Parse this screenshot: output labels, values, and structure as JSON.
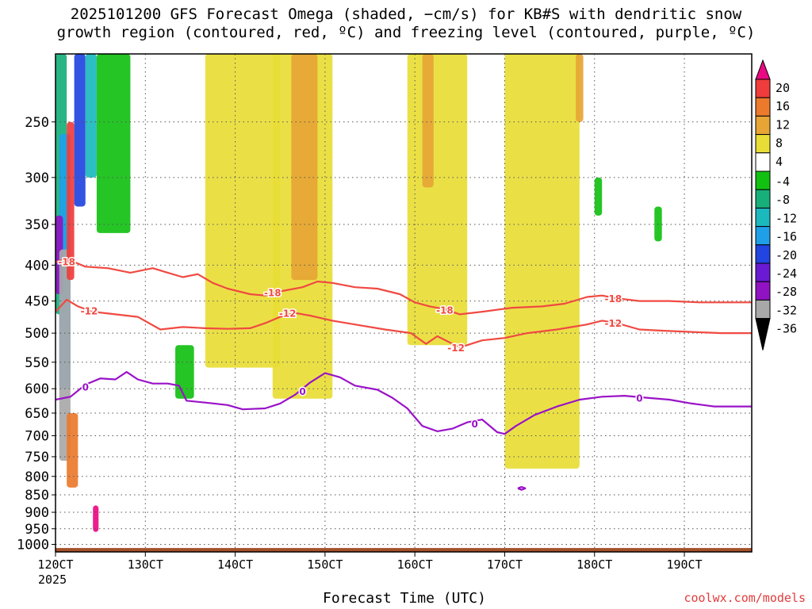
{
  "title_line1": "2025101200 GFS Forecast Omega (shaded, −cm/s) for KB#S with dendritic snow",
  "title_line2": "growth region (contoured, red, ºC) and freezing level (contoured, purple, ºC)",
  "xlabel": "Forecast Time (UTC)",
  "year_label": "2025",
  "credit": "coolwx.com/models",
  "colors": {
    "dgz_contour": "#f04a42",
    "freezing_contour": "#9a12c8",
    "terrain": "#a4522a",
    "grid": "#555555"
  },
  "chart_data": {
    "type": "heatmap",
    "title": "2025101200 GFS Forecast Omega (shaded, −cm/s) for KB#S with dendritic snow growth region (contoured, red, ºC) and freezing level (contoured, purple, ºC)",
    "xlabel": "Forecast Time (UTC)",
    "ylabel": "",
    "x_ticks": [
      "120CT",
      "130CT",
      "140CT",
      "150CT",
      "160CT",
      "170CT",
      "180CT",
      "190CT"
    ],
    "x_tick_hours": [
      0,
      24,
      48,
      72,
      96,
      120,
      144,
      168
    ],
    "x_range_hours": [
      0,
      186
    ],
    "y_ticks": [
      250,
      300,
      350,
      400,
      450,
      500,
      550,
      600,
      650,
      700,
      750,
      800,
      850,
      900,
      950,
      1000
    ],
    "y_range_hpa": [
      200,
      1025
    ],
    "y_scale": "log-pressure",
    "grid": true,
    "colorbar": {
      "labels": [
        "20",
        "16",
        "12",
        "8",
        "4",
        "-4",
        "-8",
        "-12",
        "-16",
        "-20",
        "-24",
        "-28",
        "-32",
        "-36"
      ],
      "bins": [
        {
          "from": 20,
          "to": 24,
          "color": "#ea0a82"
        },
        {
          "from": 16,
          "to": 20,
          "color": "#f03c3c"
        },
        {
          "from": 12,
          "to": 16,
          "color": "#ec7a2c"
        },
        {
          "from": 8,
          "to": 12,
          "color": "#e6a535"
        },
        {
          "from": 4,
          "to": 8,
          "color": "#e8dd36"
        },
        {
          "from": -4,
          "to": 4,
          "color": "#ffffff"
        },
        {
          "from": -8,
          "to": -4,
          "color": "#12c012"
        },
        {
          "from": -12,
          "to": -8,
          "color": "#18b07a"
        },
        {
          "from": -16,
          "to": -12,
          "color": "#1bb8be"
        },
        {
          "from": -20,
          "to": -16,
          "color": "#1f9fe8"
        },
        {
          "from": -24,
          "to": -20,
          "color": "#2244e0"
        },
        {
          "from": -28,
          "to": -24,
          "color": "#6a1ad2"
        },
        {
          "from": -32,
          "to": -28,
          "color": "#9012c2"
        },
        {
          "from": -36,
          "to": -32,
          "color": "#a8a8a8"
        }
      ]
    },
    "contours": [
      {
        "name": "-18",
        "kind": "dgz",
        "label": "-18",
        "points": [
          [
            0,
            396
          ],
          [
            3,
            392
          ],
          [
            8,
            402
          ],
          [
            14,
            404
          ],
          [
            20,
            410
          ],
          [
            26,
            404
          ],
          [
            30,
            410
          ],
          [
            34,
            416
          ],
          [
            38,
            412
          ],
          [
            42,
            424
          ],
          [
            46,
            432
          ],
          [
            52,
            440
          ],
          [
            56,
            442
          ],
          [
            60,
            436
          ],
          [
            66,
            430
          ],
          [
            70,
            422
          ],
          [
            74,
            424
          ],
          [
            80,
            430
          ],
          [
            86,
            432
          ],
          [
            92,
            440
          ],
          [
            96,
            452
          ],
          [
            100,
            458
          ],
          [
            104,
            462
          ],
          [
            108,
            470
          ],
          [
            114,
            466
          ],
          [
            122,
            460
          ],
          [
            130,
            458
          ],
          [
            136,
            454
          ],
          [
            142,
            444
          ],
          [
            146,
            442
          ],
          [
            150,
            446
          ],
          [
            156,
            450
          ],
          [
            164,
            450
          ],
          [
            172,
            452
          ],
          [
            180,
            452
          ],
          [
            186,
            452
          ]
        ],
        "labels_at": [
          [
            3,
            395
          ],
          [
            58,
            437
          ],
          [
            104,
            463
          ],
          [
            149,
            446
          ]
        ]
      },
      {
        "name": "-12",
        "kind": "dgz",
        "label": "-12",
        "points": [
          [
            0,
            466
          ],
          [
            3,
            448
          ],
          [
            6,
            458
          ],
          [
            10,
            466
          ],
          [
            16,
            470
          ],
          [
            22,
            474
          ],
          [
            28,
            494
          ],
          [
            34,
            490
          ],
          [
            40,
            492
          ],
          [
            46,
            493
          ],
          [
            52,
            492
          ],
          [
            56,
            484
          ],
          [
            60,
            474
          ],
          [
            64,
            468
          ],
          [
            68,
            472
          ],
          [
            74,
            480
          ],
          [
            80,
            486
          ],
          [
            88,
            494
          ],
          [
            95,
            500
          ],
          [
            99,
            518
          ],
          [
            102,
            505
          ],
          [
            108,
            524
          ],
          [
            114,
            512
          ],
          [
            120,
            508
          ],
          [
            126,
            500
          ],
          [
            134,
            494
          ],
          [
            142,
            486
          ],
          [
            146,
            480
          ],
          [
            150,
            484
          ],
          [
            156,
            494
          ],
          [
            162,
            496
          ],
          [
            170,
            498
          ],
          [
            178,
            500
          ],
          [
            186,
            500
          ]
        ],
        "labels_at": [
          [
            9,
            464
          ],
          [
            62,
            468
          ],
          [
            107,
            524
          ],
          [
            149,
            483
          ]
        ]
      },
      {
        "name": "0",
        "kind": "freezing",
        "label": "0",
        "points": [
          [
            0,
            622
          ],
          [
            4,
            616
          ],
          [
            8,
            592
          ],
          [
            12,
            580
          ],
          [
            16,
            582
          ],
          [
            19,
            568
          ],
          [
            22,
            582
          ],
          [
            26,
            590
          ],
          [
            30,
            590
          ],
          [
            33,
            594
          ],
          [
            35,
            624
          ],
          [
            40,
            628
          ],
          [
            46,
            633
          ],
          [
            50,
            642
          ],
          [
            56,
            640
          ],
          [
            60,
            630
          ],
          [
            64,
            612
          ],
          [
            68,
            588
          ],
          [
            72,
            570
          ],
          [
            76,
            578
          ],
          [
            80,
            594
          ],
          [
            86,
            602
          ],
          [
            90,
            618
          ],
          [
            94,
            640
          ],
          [
            98,
            678
          ],
          [
            102,
            690
          ],
          [
            106,
            684
          ],
          [
            110,
            670
          ],
          [
            114,
            664
          ],
          [
            118,
            692
          ],
          [
            120,
            696
          ],
          [
            123,
            678
          ],
          [
            128,
            654
          ],
          [
            134,
            636
          ],
          [
            140,
            622
          ],
          [
            146,
            616
          ],
          [
            152,
            614
          ],
          [
            158,
            618
          ],
          [
            164,
            622
          ],
          [
            170,
            630
          ],
          [
            176,
            636
          ],
          [
            186,
            636
          ]
        ],
        "labels_at": [
          [
            8,
            596
          ],
          [
            66,
            604
          ],
          [
            112,
            672
          ],
          [
            156,
            618
          ]
        ]
      },
      {
        "name": "0-closed",
        "kind": "freezing",
        "label": "",
        "points": [
          [
            123.5,
            832
          ],
          [
            124.5,
            828
          ],
          [
            125.5,
            832
          ],
          [
            124.5,
            836
          ],
          [
            123.5,
            832
          ]
        ],
        "labels_at": []
      }
    ],
    "omega_regions": [
      {
        "value": -10,
        "x": [
          0,
          3
        ],
        "p": [
          200,
          470
        ]
      },
      {
        "value": -18,
        "x": [
          1,
          4
        ],
        "p": [
          260,
          600
        ]
      },
      {
        "value": -30,
        "x": [
          0,
          2
        ],
        "p": [
          340,
          440
        ]
      },
      {
        "value": -36,
        "x": [
          1,
          4
        ],
        "p": [
          380,
          760
        ]
      },
      {
        "value": -22,
        "x": [
          5,
          8
        ],
        "p": [
          200,
          330
        ]
      },
      {
        "value": -14,
        "x": [
          8,
          11
        ],
        "p": [
          200,
          300
        ]
      },
      {
        "value": -6,
        "x": [
          11,
          20
        ],
        "p": [
          200,
          360
        ]
      },
      {
        "value": -6,
        "x": [
          32,
          37
        ],
        "p": [
          520,
          620
        ]
      },
      {
        "value": 18,
        "x": [
          3,
          5
        ],
        "p": [
          250,
          420
        ]
      },
      {
        "value": 14,
        "x": [
          3,
          6
        ],
        "p": [
          650,
          830
        ]
      },
      {
        "value": 22,
        "x": [
          10,
          11.5
        ],
        "p": [
          880,
          960
        ]
      },
      {
        "value": 6,
        "x": [
          40,
          60
        ],
        "p": [
          200,
          560
        ]
      },
      {
        "value": 6,
        "x": [
          58,
          74
        ],
        "p": [
          200,
          620
        ]
      },
      {
        "value": 10,
        "x": [
          63,
          70
        ],
        "p": [
          200,
          420
        ]
      },
      {
        "value": 6,
        "x": [
          94,
          110
        ],
        "p": [
          200,
          520
        ]
      },
      {
        "value": 10,
        "x": [
          98,
          101
        ],
        "p": [
          200,
          310
        ]
      },
      {
        "value": 6,
        "x": [
          120,
          140
        ],
        "p": [
          200,
          780
        ]
      },
      {
        "value": 10,
        "x": [
          139,
          141
        ],
        "p": [
          200,
          250
        ]
      },
      {
        "value": -6,
        "x": [
          144,
          146
        ],
        "p": [
          300,
          340
        ]
      },
      {
        "value": -6,
        "x": [
          160,
          162
        ],
        "p": [
          330,
          370
        ]
      }
    ],
    "terrain_hpa": 1012
  }
}
